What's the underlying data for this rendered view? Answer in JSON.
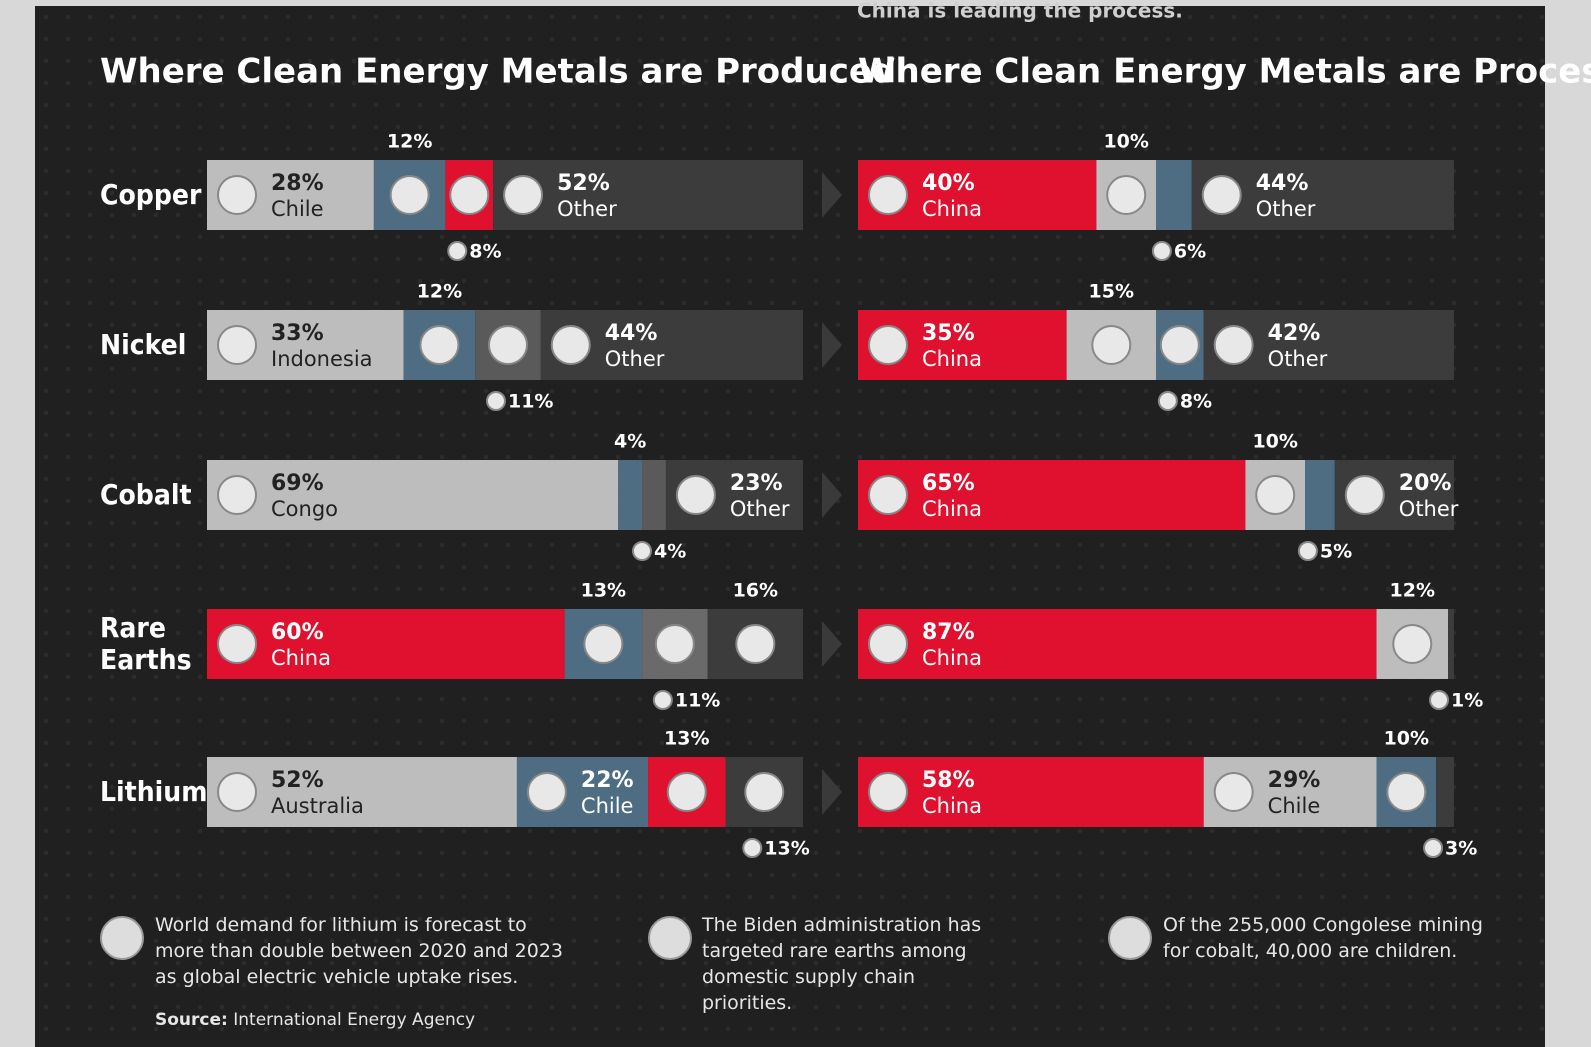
{
  "header_note": "China is leading the process.",
  "chart_data": [
    {
      "type": "stacked-bar",
      "title": "Where Clean Energy Metals are Produced",
      "categories": [
        "Copper",
        "Nickel",
        "Cobalt",
        "Rare Earths",
        "Lithium"
      ],
      "rows": [
        [
          {
            "name": "Chile",
            "value": 28,
            "value_label": "28%",
            "color": "#bdbdbd"
          },
          {
            "value": 12,
            "value_label": "12%",
            "color": "#4e6d82"
          },
          {
            "value": 8,
            "value_label": "8%",
            "color": "#e0102f"
          },
          {
            "name": "Other",
            "value": 52,
            "value_label": "52%",
            "color": "#3c3c3c"
          }
        ],
        [
          {
            "name": "Indonesia",
            "value": 33,
            "value_label": "33%",
            "color": "#bdbdbd"
          },
          {
            "value": 12,
            "value_label": "12%",
            "color": "#4e6d82"
          },
          {
            "value": 11,
            "value_label": "11%",
            "color": "#5a5a5a"
          },
          {
            "name": "Other",
            "value": 44,
            "value_label": "44%",
            "color": "#3c3c3c"
          }
        ],
        [
          {
            "name": "Congo",
            "value": 69,
            "value_label": "69%",
            "color": "#bdbdbd"
          },
          {
            "value": 4,
            "value_label": "4%",
            "color": "#4e6d82"
          },
          {
            "value": 4,
            "value_label": "4%",
            "color": "#5a5a5a"
          },
          {
            "name": "Other",
            "value": 23,
            "value_label": "23%",
            "color": "#3c3c3c"
          }
        ],
        [
          {
            "name": "China",
            "value": 60,
            "value_label": "60%",
            "color": "#e0102f"
          },
          {
            "value": 13,
            "value_label": "13%",
            "color": "#4e6d82"
          },
          {
            "value": 11,
            "value_label": "11%",
            "color": "#6a6a6a"
          },
          {
            "value": 16,
            "value_label": "16%",
            "color": "#3c3c3c"
          }
        ],
        [
          {
            "name": "Australia",
            "value": 52,
            "value_label": "52%",
            "color": "#bdbdbd"
          },
          {
            "name": "Chile",
            "value": 22,
            "value_label": "22%",
            "color": "#4e6d82"
          },
          {
            "value": 13,
            "value_label": "13%",
            "color": "#e0102f"
          },
          {
            "value": 13,
            "value_label": "13%",
            "color": "#3c3c3c"
          }
        ]
      ]
    },
    {
      "type": "stacked-bar",
      "title": "Where Clean Energy Metals are Processed",
      "rows": [
        [
          {
            "name": "China",
            "value": 40,
            "value_label": "40%",
            "color": "#e0102f"
          },
          {
            "value": 10,
            "value_label": "10%",
            "color": "#bdbdbd"
          },
          {
            "value": 6,
            "value_label": "6%",
            "color": "#4e6d82"
          },
          {
            "name": "Other",
            "value": 44,
            "value_label": "44%",
            "color": "#3c3c3c"
          }
        ],
        [
          {
            "name": "China",
            "value": 35,
            "value_label": "35%",
            "color": "#e0102f"
          },
          {
            "value": 15,
            "value_label": "15%",
            "color": "#bdbdbd"
          },
          {
            "value": 8,
            "value_label": "8%",
            "color": "#4e6d82"
          },
          {
            "name": "Other",
            "value": 42,
            "value_label": "42%",
            "color": "#3c3c3c"
          }
        ],
        [
          {
            "name": "China",
            "value": 65,
            "value_label": "65%",
            "color": "#e0102f"
          },
          {
            "value": 10,
            "value_label": "10%",
            "color": "#bdbdbd"
          },
          {
            "value": 5,
            "value_label": "5%",
            "color": "#4e6d82"
          },
          {
            "name": "Other",
            "value": 20,
            "value_label": "20%",
            "color": "#3c3c3c"
          }
        ],
        [
          {
            "name": "China",
            "value": 87,
            "value_label": "87%",
            "color": "#e0102f"
          },
          {
            "value": 12,
            "value_label": "12%",
            "color": "#bdbdbd"
          },
          {
            "value": 1,
            "value_label": "1%",
            "color": "#3c3c3c"
          }
        ],
        [
          {
            "name": "China",
            "value": 58,
            "value_label": "58%",
            "color": "#e0102f"
          },
          {
            "name": "Chile",
            "value": 29,
            "value_label": "29%",
            "color": "#bdbdbd"
          },
          {
            "value": 10,
            "value_label": "10%",
            "color": "#4e6d82"
          },
          {
            "value": 3,
            "value_label": "3%",
            "color": "#3c3c3c"
          }
        ]
      ]
    }
  ],
  "notes": [
    "World demand for lithium is forecast to more than double between 2020 and 2023 as global electric vehicle uptake rises.",
    "The Biden administration has targeted rare earths among domestic supply chain priorities.",
    "Of the 255,000 Congolese mining for cobalt, 40,000 are children."
  ],
  "source_label": "Source:",
  "source": "International Energy Agency"
}
